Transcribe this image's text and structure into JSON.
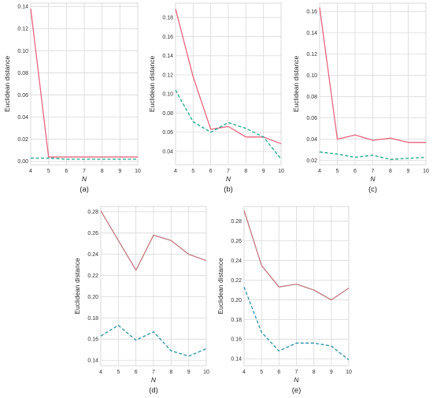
{
  "colors": {
    "pink": "#e8647e",
    "rose": "#c07a80",
    "teal": "#1aa58c",
    "tealblue": "#2a8fa5"
  },
  "chart_data": [
    {
      "type": "line",
      "caption": "(a)",
      "xlabel": "N",
      "ylabel": "Euclidean distance",
      "x": [
        4,
        5,
        6,
        7,
        8,
        9,
        10
      ],
      "xlim": [
        4,
        10
      ],
      "ylim": [
        -0.003,
        0.143
      ],
      "yticks": [
        0.0,
        0.02,
        0.04,
        0.06,
        0.08,
        0.1,
        0.12,
        0.14
      ],
      "ytick_labels": [
        "0.00",
        "0.02",
        "0.04",
        "0.06",
        "0.08",
        "0.10",
        "0.12",
        "0.14"
      ],
      "grid": true,
      "series": [
        {
          "style": "solid",
          "color": "#e8647e",
          "values": [
            0.138,
            0.004,
            0.004,
            0.004,
            0.004,
            0.004,
            0.004
          ]
        },
        {
          "style": "dashed",
          "color": "#1aa58c",
          "values": [
            0.003,
            0.003,
            0.002,
            0.002,
            0.002,
            0.002,
            0.002
          ]
        }
      ]
    },
    {
      "type": "line",
      "caption": "(b)",
      "xlabel": "N",
      "ylabel": "Euclidean distance",
      "x": [
        4,
        5,
        6,
        7,
        8,
        9,
        10
      ],
      "xlim": [
        4,
        10
      ],
      "ylim": [
        0.026,
        0.195
      ],
      "yticks": [
        0.04,
        0.06,
        0.08,
        0.1,
        0.12,
        0.14,
        0.16,
        0.18
      ],
      "ytick_labels": [
        "0.04",
        "0.06",
        "0.08",
        "0.10",
        "0.12",
        "0.14",
        "0.16",
        "0.18"
      ],
      "grid": true,
      "series": [
        {
          "style": "solid",
          "color": "#e8647e",
          "values": [
            0.189,
            0.118,
            0.063,
            0.066,
            0.055,
            0.055,
            0.048
          ]
        },
        {
          "style": "dashed",
          "color": "#1aa58c",
          "values": [
            0.104,
            0.071,
            0.06,
            0.07,
            0.064,
            0.055,
            0.032
          ]
        }
      ]
    },
    {
      "type": "line",
      "caption": "(c)",
      "xlabel": "N",
      "ylabel": "Euclidean distance",
      "x": [
        4,
        5,
        6,
        7,
        8,
        9,
        10
      ],
      "xlim": [
        4,
        10
      ],
      "ylim": [
        0.016,
        0.168
      ],
      "yticks": [
        0.02,
        0.04,
        0.06,
        0.08,
        0.1,
        0.12,
        0.14,
        0.16
      ],
      "ytick_labels": [
        "0.02",
        "0.04",
        "0.06",
        "0.08",
        "0.10",
        "0.12",
        "0.14",
        "0.16"
      ],
      "grid": true,
      "series": [
        {
          "style": "solid",
          "color": "#e8647e",
          "values": [
            0.164,
            0.04,
            0.044,
            0.039,
            0.041,
            0.037,
            0.037
          ]
        },
        {
          "style": "dashed",
          "color": "#1aa58c",
          "values": [
            0.028,
            0.026,
            0.023,
            0.025,
            0.021,
            0.022,
            0.023
          ]
        }
      ]
    },
    {
      "type": "line",
      "caption": "(d)",
      "xlabel": "N",
      "ylabel": "Euclidean distance",
      "x": [
        4,
        5,
        6,
        7,
        8,
        9,
        10
      ],
      "xlim": [
        4,
        10
      ],
      "ylim": [
        0.135,
        0.285
      ],
      "yticks": [
        0.14,
        0.16,
        0.18,
        0.2,
        0.22,
        0.24,
        0.26,
        0.28
      ],
      "ytick_labels": [
        "0.14",
        "0.16",
        "0.18",
        "0.20",
        "0.22",
        "0.24",
        "0.26",
        "0.28"
      ],
      "grid": true,
      "series": [
        {
          "style": "solid",
          "color": "#c07a80",
          "values": [
            0.281,
            0.253,
            0.225,
            0.258,
            0.253,
            0.24,
            0.234
          ]
        },
        {
          "style": "dashed",
          "color": "#2a8fa5",
          "values": [
            0.163,
            0.173,
            0.159,
            0.167,
            0.149,
            0.144,
            0.151
          ]
        }
      ]
    },
    {
      "type": "line",
      "caption": "(e)",
      "xlabel": "N",
      "ylabel": "Euclidean distance",
      "x": [
        4,
        5,
        6,
        7,
        8,
        9,
        10
      ],
      "xlim": [
        4,
        10
      ],
      "ylim": [
        0.133,
        0.295
      ],
      "yticks": [
        0.14,
        0.16,
        0.18,
        0.2,
        0.22,
        0.24,
        0.26,
        0.28
      ],
      "ytick_labels": [
        "0.14",
        "0.16",
        "0.18",
        "0.20",
        "0.22",
        "0.24",
        "0.26",
        "0.28"
      ],
      "grid": true,
      "series": [
        {
          "style": "solid",
          "color": "#c07a80",
          "values": [
            0.291,
            0.235,
            0.213,
            0.216,
            0.21,
            0.2,
            0.212
          ]
        },
        {
          "style": "dashed",
          "color": "#2a8fa5",
          "values": [
            0.213,
            0.167,
            0.148,
            0.156,
            0.156,
            0.153,
            0.139
          ]
        }
      ]
    }
  ]
}
